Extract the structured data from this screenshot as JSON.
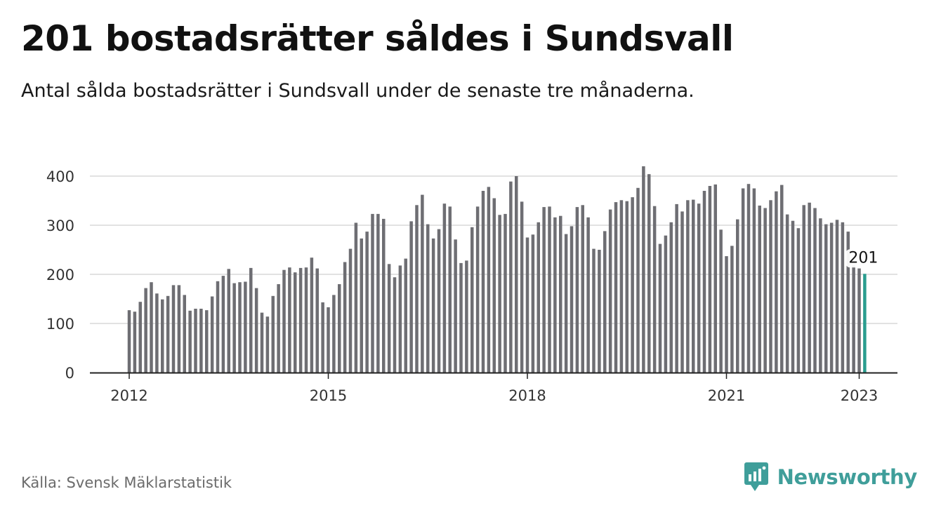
{
  "header": {
    "title": "201 bostadsrätter såldes i Sundsvall",
    "subtitle": "Antal sålda bostadsrätter i Sundsvall under de senaste tre månaderna."
  },
  "footer": {
    "source": "Källa: Svensk Mäklarstatistik",
    "brand": "Newsworthy",
    "brand_icon": "bar-chart-speech-bubble-icon"
  },
  "colors": {
    "bar": "#6e6e73",
    "highlight": "#2a9d8f",
    "grid": "#d9d9d9",
    "axis": "#222222",
    "brand": "#3f9e9a"
  },
  "chart_data": {
    "type": "bar",
    "title": "201 bostadsrätter såldes i Sundsvall",
    "subtitle": "Antal sålda bostadsrätter i Sundsvall under de senaste tre månaderna.",
    "xlabel": "",
    "ylabel": "",
    "ylim": [
      0,
      420
    ],
    "yticks": [
      0,
      100,
      200,
      300,
      400
    ],
    "xticks": [
      "2012",
      "2015",
      "2018",
      "2021",
      "2023"
    ],
    "grid": true,
    "legend": "none",
    "highlight_label": "201",
    "series": [
      {
        "values": [
          127,
          124,
          144,
          172,
          184,
          161,
          149,
          156,
          178,
          178,
          158,
          126,
          130,
          130,
          127,
          155,
          186,
          197,
          211,
          182,
          184,
          185,
          213,
          172,
          122,
          114,
          156,
          180,
          209,
          214,
          204,
          213,
          214,
          234,
          212,
          143,
          133,
          158,
          180,
          225,
          252,
          305,
          273,
          287,
          323,
          323,
          313,
          221,
          194,
          218,
          232,
          308,
          341,
          362,
          302,
          273,
          292,
          344,
          338,
          271,
          223,
          228,
          296,
          338,
          370,
          378,
          355,
          321,
          323,
          389,
          400,
          348,
          275,
          281,
          306,
          337,
          338,
          316,
          319,
          282,
          298,
          337,
          341,
          316,
          252,
          250,
          288,
          332,
          347,
          351,
          349,
          357,
          376,
          420,
          404,
          339,
          262,
          279,
          306,
          343,
          328,
          351,
          352,
          344,
          370,
          380,
          383,
          291,
          237,
          258,
          312,
          375,
          384,
          375,
          340,
          335,
          351,
          369,
          382,
          322,
          309,
          294,
          341,
          346,
          335,
          314,
          302,
          305,
          311,
          306,
          287,
          218,
          212,
          201
        ]
      }
    ]
  }
}
